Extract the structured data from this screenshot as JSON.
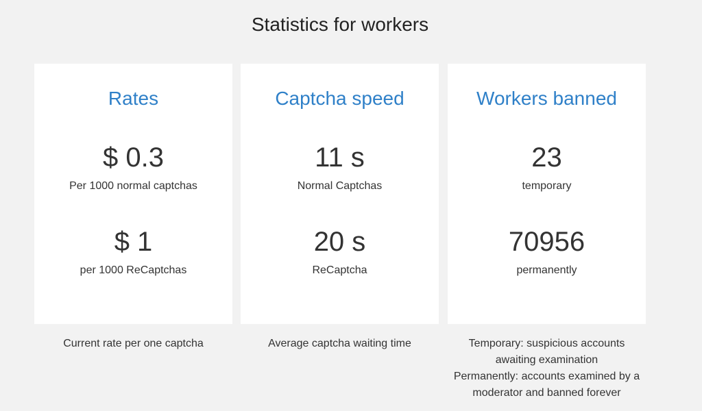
{
  "page": {
    "title": "Statistics for workers"
  },
  "cards": [
    {
      "title": "Rates",
      "items": [
        {
          "value": "$ 0.3",
          "label": "Per 1000 normal captchas"
        },
        {
          "value": "$ 1",
          "label": "per 1000 ReCaptchas"
        }
      ],
      "footnote": [
        "Current rate per one captcha"
      ]
    },
    {
      "title": "Captcha speed",
      "items": [
        {
          "value": "11 s",
          "label": "Normal Captchas"
        },
        {
          "value": "20 s",
          "label": "ReCaptcha"
        }
      ],
      "footnote": [
        "Average captcha waiting time"
      ]
    },
    {
      "title": "Workers banned",
      "items": [
        {
          "value": "23",
          "label": "temporary"
        },
        {
          "value": "70956",
          "label": "permanently"
        }
      ],
      "footnote": [
        "Temporary: suspicious accounts",
        "awaiting examination",
        "Permanently: accounts examined by a",
        "moderator and banned forever"
      ]
    }
  ],
  "colors": {
    "background": "#f2f2f2",
    "card": "#ffffff",
    "accent": "#2f80c8",
    "text": "#333333"
  }
}
